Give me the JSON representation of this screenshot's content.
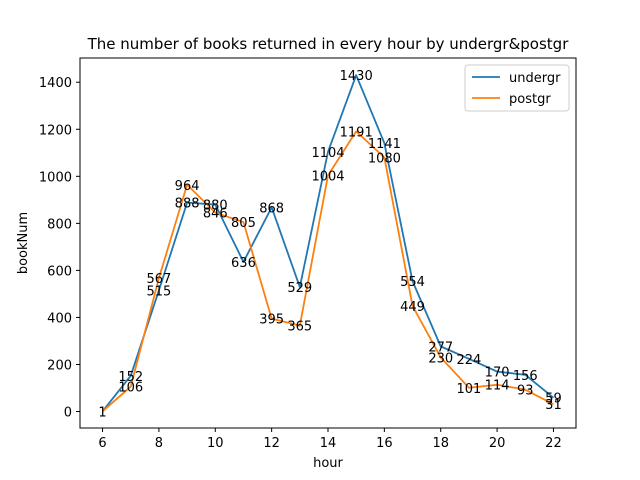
{
  "chart_data": {
    "type": "line",
    "title": "The number of books returned in every hour by undergr&postgr",
    "xlabel": "hour",
    "ylabel": "bookNum",
    "x": [
      6,
      7,
      8,
      9,
      10,
      11,
      12,
      13,
      14,
      15,
      16,
      17,
      18,
      19,
      20,
      21,
      22
    ],
    "xticks": [
      "6",
      "8",
      "10",
      "12",
      "14",
      "16",
      "18",
      "20",
      "22"
    ],
    "yticks": [
      "0",
      "200",
      "400",
      "600",
      "800",
      "1000",
      "1200",
      "1400"
    ],
    "xlim": [
      5.2,
      22.8
    ],
    "ylim": [
      -70,
      1503
    ],
    "grid": false,
    "legend_position": "top-right",
    "series": [
      {
        "name": "undergr",
        "color": "#1f77b4",
        "values": [
          1,
          152,
          515,
          888,
          880,
          636,
          868,
          529,
          1104,
          1430,
          1141,
          554,
          277,
          224,
          170,
          156,
          59
        ]
      },
      {
        "name": "postgr",
        "color": "#ff7f0e",
        "values": [
          1,
          106,
          567,
          964,
          846,
          805,
          395,
          365,
          1004,
          1191,
          1080,
          449,
          230,
          101,
          114,
          93,
          31
        ]
      }
    ],
    "data_labels": [
      {
        "x": 6,
        "value": "1"
      },
      {
        "x": 7,
        "value": "152"
      },
      {
        "x": 7,
        "value": "106"
      },
      {
        "x": 8,
        "value": "567"
      },
      {
        "x": 8,
        "value": "515"
      },
      {
        "x": 9,
        "value": "964"
      },
      {
        "x": 9,
        "value": "888"
      },
      {
        "x": 10,
        "value": "880"
      },
      {
        "x": 10,
        "value": "846"
      },
      {
        "x": 11,
        "value": "805"
      },
      {
        "x": 11,
        "value": "636"
      },
      {
        "x": 12,
        "value": "868"
      },
      {
        "x": 12,
        "value": "395"
      },
      {
        "x": 13,
        "value": "529"
      },
      {
        "x": 13,
        "value": "365"
      },
      {
        "x": 14,
        "value": "1104"
      },
      {
        "x": 14,
        "value": "1004"
      },
      {
        "x": 15,
        "value": "1430"
      },
      {
        "x": 15,
        "value": "1191"
      },
      {
        "x": 16,
        "value": "1141"
      },
      {
        "x": 16,
        "value": "1080"
      },
      {
        "x": 17,
        "value": "554"
      },
      {
        "x": 17,
        "value": "449"
      },
      {
        "x": 18,
        "value": "277"
      },
      {
        "x": 18,
        "value": "230"
      },
      {
        "x": 19,
        "value": "224"
      },
      {
        "x": 19,
        "value": "101"
      },
      {
        "x": 20,
        "value": "170"
      },
      {
        "x": 20,
        "value": "114"
      },
      {
        "x": 21,
        "value": "156"
      },
      {
        "x": 21,
        "value": "93"
      },
      {
        "x": 22,
        "value": "59"
      },
      {
        "x": 22,
        "value": "31"
      }
    ]
  }
}
